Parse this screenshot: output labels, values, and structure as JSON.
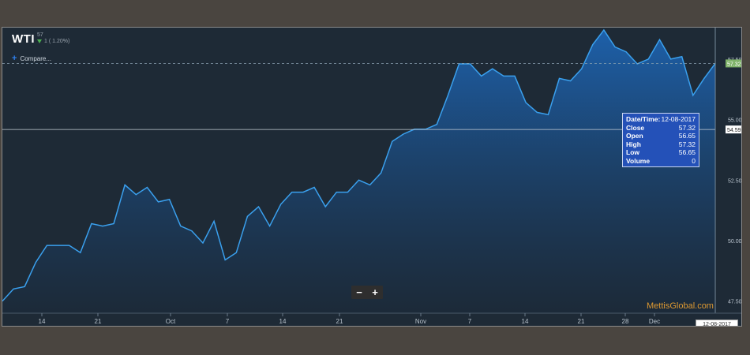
{
  "header": {
    "ticker": "WTI",
    "price": "57",
    "change": "1 ( 1.20%)",
    "compare_label": "Compare..."
  },
  "tooltip": {
    "rows": [
      {
        "key": "Date/Time:",
        "value": "12-08-2017"
      },
      {
        "key": "Close",
        "value": "57.32"
      },
      {
        "key": "Open",
        "value": "56.65"
      },
      {
        "key": "High",
        "value": "57.32"
      },
      {
        "key": "Low",
        "value": "56.65"
      },
      {
        "key": "Volume",
        "value": "0"
      }
    ]
  },
  "zoom": {
    "minus": "−",
    "plus": "+"
  },
  "watermark": "MettisGlobal.com",
  "crosshair_date": "12-08-2017",
  "colors": {
    "background": "#1e2a36",
    "line": "#3aa0ee",
    "last_price_badge": "#7fb36a",
    "crosshair_badge": "#ffffff",
    "tooltip": "#2451b8",
    "watermark": "#f2a531"
  },
  "chart_data": {
    "type": "area",
    "title": "WTI",
    "x_ticks": [
      "14",
      "21",
      "Oct",
      "7",
      "14",
      "21",
      "Nov",
      "7",
      "14",
      "21",
      "28",
      "Dec"
    ],
    "y_ticks": [
      "47.50",
      "50.00",
      "52.50",
      "55.00",
      "57.50"
    ],
    "ylim": [
      47.0,
      58.8
    ],
    "last_price_label": "57.32",
    "crosshair_price_label": "54.59",
    "grid": false,
    "series": [
      {
        "values": [
          47.5,
          48.0,
          48.1,
          49.1,
          49.8,
          49.8,
          49.8,
          49.5,
          50.7,
          50.6,
          50.7,
          52.3,
          51.9,
          52.2,
          51.6,
          51.7,
          50.6,
          50.4,
          49.9,
          50.8,
          49.2,
          49.5,
          51.0,
          51.4,
          50.6,
          51.5,
          52.0,
          52.0,
          52.2,
          51.4,
          52.0,
          52.0,
          52.5,
          52.3,
          52.8,
          54.1,
          54.4,
          54.6,
          54.6,
          54.8,
          56.0,
          57.3,
          57.3,
          56.8,
          57.1,
          56.8,
          56.8,
          55.7,
          55.3,
          55.2,
          56.7,
          56.6,
          57.1,
          58.1,
          58.7,
          58.0,
          57.8,
          57.3,
          57.5,
          58.3,
          57.5,
          57.6,
          56.0,
          56.7,
          57.32
        ]
      }
    ]
  }
}
